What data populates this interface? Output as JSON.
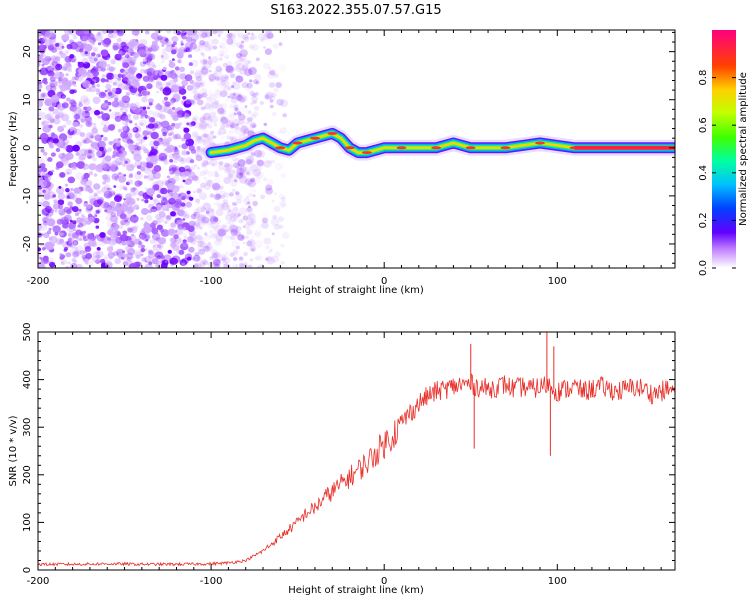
{
  "title": "S163.2022.355.07.57.G15",
  "chart_data": [
    {
      "type": "heatmap",
      "xlabel": "Height of straight line (km)",
      "ylabel": "Frequency (Hz)",
      "xlim": [
        -200,
        168
      ],
      "ylim": [
        -25,
        24.5
      ],
      "xticks": [
        -200,
        -100,
        0,
        100
      ],
      "xtick_labels": [
        "-200",
        "-100",
        "0",
        "100"
      ],
      "yticks": [
        -20,
        -10,
        0,
        10,
        20
      ],
      "ytick_labels": [
        "-20",
        "-10",
        "0",
        "10",
        "20"
      ],
      "colorbar": {
        "label": "Normalized spectral amplitude",
        "range": [
          0,
          1
        ],
        "ticks": [
          0.0,
          0.2,
          0.4,
          0.6,
          0.8
        ],
        "tick_labels": [
          "0.0",
          "0.2",
          "0.4",
          "0.6",
          "0.8"
        ]
      },
      "noise_region": {
        "x": [
          -200,
          -80
        ],
        "color": "#8800ff"
      },
      "ridge": {
        "x": [
          -100,
          -90,
          -80,
          -75,
          -70,
          -65,
          -60,
          -55,
          -50,
          -45,
          -40,
          -35,
          -30,
          -25,
          -20,
          -15,
          -10,
          0,
          10,
          20,
          30,
          40,
          50,
          60,
          70,
          80,
          90,
          100,
          110,
          120,
          130,
          140,
          150,
          168
        ],
        "y": [
          -1,
          -0.5,
          0.5,
          1.5,
          2,
          1,
          0,
          -0.5,
          1,
          1.5,
          2,
          2.5,
          3,
          2,
          0,
          -1,
          -1,
          0,
          0,
          0,
          0,
          1,
          0,
          0,
          0,
          0.5,
          1,
          0.5,
          0,
          0,
          0,
          0,
          0,
          0
        ]
      },
      "grid": false
    },
    {
      "type": "line",
      "xlabel": "Height of straight line (km)",
      "ylabel": "SNR (10 * v/v)",
      "xlim": [
        -200,
        168
      ],
      "ylim": [
        0,
        500
      ],
      "xticks": [
        -200,
        -100,
        0,
        100
      ],
      "xtick_labels": [
        "-200",
        "-100",
        "0",
        "100"
      ],
      "yticks": [
        0,
        100,
        200,
        300,
        400,
        500
      ],
      "ytick_labels": [
        "0",
        "100",
        "200",
        "300",
        "400",
        "500"
      ],
      "color": "#e8302a",
      "grid": false,
      "series": [
        {
          "x": [
            -200,
            -180,
            -160,
            -140,
            -120,
            -100,
            -90,
            -80,
            -75,
            -70,
            -65,
            -60,
            -55,
            -50,
            -45,
            -40,
            -35,
            -30,
            -25,
            -20,
            -15,
            -10,
            -5,
            0,
            5,
            10,
            15,
            20,
            25,
            30,
            35,
            40,
            45,
            50,
            55,
            60,
            65,
            70,
            75,
            80,
            85,
            90,
            95,
            100,
            105,
            110,
            115,
            120,
            125,
            130,
            135,
            140,
            145,
            150,
            155,
            160,
            165,
            168
          ],
          "values": [
            12,
            12,
            13,
            12,
            12,
            13,
            15,
            20,
            30,
            40,
            55,
            70,
            85,
            100,
            120,
            130,
            150,
            165,
            180,
            195,
            210,
            225,
            245,
            265,
            285,
            310,
            330,
            350,
            365,
            375,
            380,
            385,
            390,
            390,
            385,
            380,
            385,
            390,
            380,
            385,
            380,
            385,
            390,
            375,
            380,
            385,
            375,
            380,
            385,
            380,
            375,
            380,
            385,
            380,
            370,
            375,
            380,
            375
          ],
          "spikes": [
            {
              "x": 50,
              "y": 475
            },
            {
              "x": 52,
              "y": 255
            },
            {
              "x": 94,
              "y": 500
            },
            {
              "x": 96,
              "y": 240
            },
            {
              "x": 98,
              "y": 470
            }
          ]
        }
      ]
    }
  ]
}
